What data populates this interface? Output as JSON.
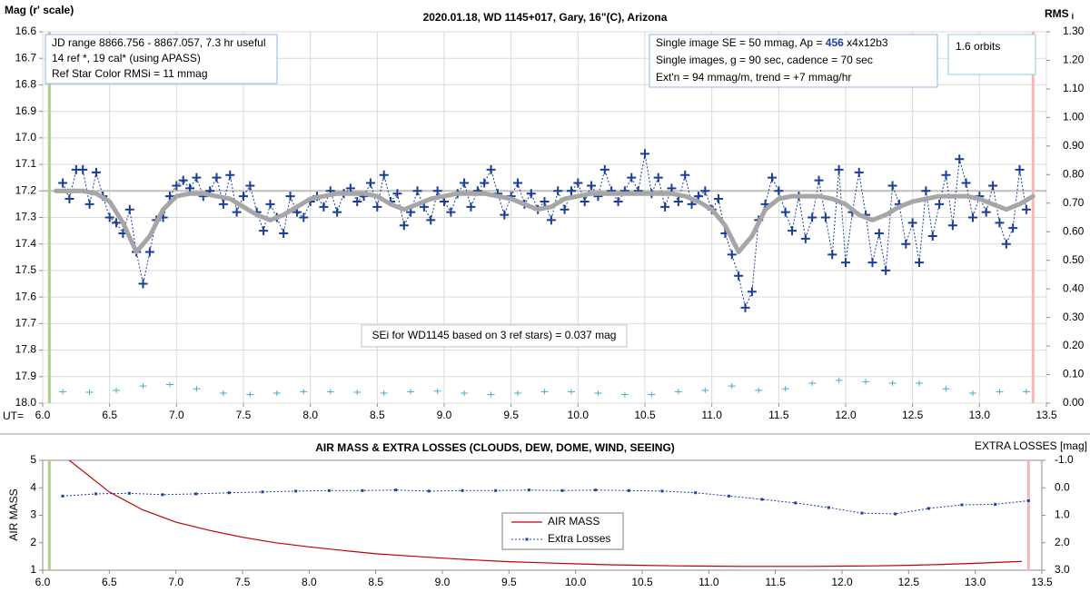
{
  "chart_data": [
    {
      "type": "scatter",
      "title": "2020.01.18, WD 1145+017, Gary, 16\"(C), Arizona",
      "y_label": "Mag (r' scale)",
      "y2_label": "RMS",
      "y2_label_sub": "i",
      "x_label": "UT=",
      "xlim": [
        6.0,
        13.5
      ],
      "xticks": [
        {
          "value": 6,
          "label": "6.0"
        },
        6.5,
        {
          "value": 7,
          "label": "7.0"
        },
        7.5,
        {
          "value": 8,
          "label": "8.0"
        },
        8.5,
        {
          "value": 9,
          "label": "9.0"
        },
        9.5,
        {
          "value": 10,
          "label": "10.0"
        },
        10.5,
        {
          "value": 11,
          "label": "11.0"
        },
        11.5,
        {
          "value": 12,
          "label": "12.0"
        },
        12.5,
        {
          "value": 13,
          "label": "13.0"
        },
        13.5
      ],
      "ylim": [
        16.6,
        18.0
      ],
      "y_inverted": true,
      "yticks": [
        16.6,
        16.7,
        16.8,
        16.9,
        {
          "value": 17,
          "label": "17.0"
        },
        17.1,
        17.2,
        17.3,
        17.4,
        17.5,
        17.6,
        17.7,
        17.8,
        17.9,
        {
          "value": 18,
          "label": "18.0"
        }
      ],
      "y2lim": [
        0,
        1.3
      ],
      "y2ticks": [
        {
          "value": 0,
          "label": "0.00"
        },
        {
          "value": 0.1,
          "label": "0.10"
        },
        {
          "value": 0.2,
          "label": "0.20"
        },
        {
          "value": 0.3,
          "label": "0.30"
        },
        {
          "value": 0.4,
          "label": "0.40"
        },
        {
          "value": 0.5,
          "label": "0.50"
        },
        {
          "value": 0.6,
          "label": "0.60"
        },
        {
          "value": 0.7,
          "label": "0.70"
        },
        {
          "value": 0.8,
          "label": "0.80"
        },
        {
          "value": 0.9,
          "label": "0.90"
        },
        {
          "value": 1,
          "label": "1.00"
        },
        {
          "value": 1.1,
          "label": "1.10"
        },
        {
          "value": 1.2,
          "label": "1.20"
        },
        {
          "value": 1.3,
          "label": "1.30"
        }
      ],
      "grid": true,
      "hlines": [
        {
          "value": 17.2,
          "color": "#bfbfbf"
        }
      ],
      "vlines": [
        {
          "value": 6.05,
          "color": "#a9d18e"
        },
        {
          "value": 13.4,
          "color": "#f4b6b6"
        }
      ],
      "annotations": [
        [
          "JD range 8866.756 - 8867.057, 7.3 hr useful",
          "14 ref *, 19 cal* (using APASS)",
          "Ref Star Color RMSi = 11 mmag"
        ],
        [
          [
            "Single image SE = 50 mmag, Ap = ",
            "456",
            " x4x12b3"
          ],
          "Single images, g = 90 sec, cadence = 70 sec",
          "Ext'n = 94 mmag/m, trend = +7 mmag/hr"
        ],
        [
          "1.6 orbits"
        ],
        [
          "SEi for WD1145 based on 3 ref stars) = 0.037 mag"
        ]
      ],
      "series": [
        {
          "color": "#1a3e96",
          "marker": "cross",
          "line": "dotted",
          "x": [
            6.15,
            6.2,
            6.25,
            6.3,
            6.35,
            6.4,
            6.45,
            6.5,
            6.55,
            6.6,
            6.65,
            6.7,
            6.75,
            6.8,
            6.85,
            6.9,
            6.95,
            7,
            7.05,
            7.1,
            7.15,
            7.2,
            7.25,
            7.3,
            7.35,
            7.4,
            7.45,
            7.5,
            7.55,
            7.6,
            7.65,
            7.7,
            7.75,
            7.8,
            7.85,
            7.9,
            7.95,
            8,
            8.05,
            8.1,
            8.15,
            8.2,
            8.25,
            8.3,
            8.35,
            8.4,
            8.45,
            8.5,
            8.55,
            8.6,
            8.65,
            8.7,
            8.75,
            8.8,
            8.85,
            8.9,
            8.95,
            9,
            9.05,
            9.1,
            9.15,
            9.2,
            9.25,
            9.3,
            9.35,
            9.4,
            9.45,
            9.5,
            9.55,
            9.6,
            9.65,
            9.7,
            9.75,
            9.8,
            9.85,
            9.9,
            9.95,
            10,
            10.05,
            10.1,
            10.15,
            10.2,
            10.25,
            10.3,
            10.35,
            10.4,
            10.45,
            10.5,
            10.55,
            10.6,
            10.65,
            10.7,
            10.75,
            10.8,
            10.85,
            10.9,
            10.95,
            11,
            11.05,
            11.1,
            11.15,
            11.2,
            11.25,
            11.3,
            11.35,
            11.4,
            11.45,
            11.5,
            11.55,
            11.6,
            11.65,
            11.7,
            11.75,
            11.8,
            11.85,
            11.9,
            11.95,
            12,
            12.05,
            12.1,
            12.15,
            12.2,
            12.25,
            12.3,
            12.35,
            12.4,
            12.45,
            12.5,
            12.55,
            12.6,
            12.65,
            12.7,
            12.75,
            12.8,
            12.85,
            12.9,
            12.95,
            13,
            13.05,
            13.1,
            13.15,
            13.2,
            13.25,
            13.3,
            13.35
          ],
          "values": [
            17.17,
            17.23,
            17.12,
            17.12,
            17.25,
            17.13,
            17.22,
            17.3,
            17.32,
            17.36,
            17.27,
            17.43,
            17.55,
            17.43,
            17.31,
            17.3,
            17.22,
            17.18,
            17.16,
            17.19,
            17.15,
            17.22,
            17.2,
            17.15,
            17.25,
            17.14,
            17.28,
            17.22,
            17.18,
            17.28,
            17.35,
            17.25,
            17.3,
            17.36,
            17.22,
            17.28,
            17.3,
            17.24,
            17.22,
            17.26,
            17.2,
            17.28,
            17.21,
            17.19,
            17.24,
            17.22,
            17.17,
            17.26,
            17.14,
            17.24,
            17.21,
            17.33,
            17.28,
            17.2,
            17.26,
            17.31,
            17.2,
            17.24,
            17.28,
            17.21,
            17.17,
            17.26,
            17.2,
            17.17,
            17.12,
            17.21,
            17.29,
            17.22,
            17.17,
            17.25,
            17.21,
            17.27,
            17.24,
            17.31,
            17.2,
            17.27,
            17.2,
            17.17,
            17.24,
            17.18,
            17.22,
            17.12,
            17.2,
            17.24,
            17.2,
            17.15,
            17.2,
            17.06,
            17.21,
            17.15,
            17.26,
            17.19,
            17.24,
            17.14,
            17.25,
            17.22,
            17.2,
            17.27,
            17.23,
            17.36,
            17.44,
            17.52,
            17.64,
            17.58,
            17.31,
            17.25,
            17.15,
            17.2,
            17.28,
            17.35,
            17.22,
            17.38,
            17.3,
            17.16,
            17.3,
            17.44,
            17.12,
            17.47,
            17.28,
            17.13,
            17.29,
            17.47,
            17.36,
            17.5,
            17.18,
            17.25,
            17.4,
            17.32,
            17.47,
            17.2,
            17.37,
            17.25,
            17.14,
            17.33,
            17.08,
            17.17,
            17.3,
            17.22,
            17.28,
            17.18,
            17.32,
            17.4,
            17.34,
            17.12,
            17.27
          ]
        },
        {
          "color": "#a6a6a6",
          "line": "thick",
          "x": [
            6.1,
            6.2,
            6.3,
            6.4,
            6.5,
            6.6,
            6.7,
            6.8,
            6.9,
            7,
            7.1,
            7.2,
            7.3,
            7.4,
            7.5,
            7.6,
            7.7,
            7.8,
            7.9,
            8,
            8.1,
            8.2,
            8.3,
            8.4,
            8.5,
            8.6,
            8.7,
            8.8,
            8.9,
            9,
            9.1,
            9.2,
            9.3,
            9.4,
            9.5,
            9.6,
            9.7,
            9.8,
            9.9,
            10,
            10.1,
            10.2,
            10.3,
            10.4,
            10.5,
            10.6,
            10.7,
            10.8,
            10.9,
            11,
            11.1,
            11.2,
            11.3,
            11.4,
            11.5,
            11.6,
            11.7,
            11.8,
            11.9,
            12,
            12.1,
            12.2,
            12.3,
            12.4,
            12.5,
            12.6,
            12.7,
            12.8,
            12.9,
            13,
            13.1,
            13.2,
            13.3,
            13.4
          ],
          "values": [
            17.2,
            17.2,
            17.2,
            17.21,
            17.24,
            17.32,
            17.43,
            17.37,
            17.27,
            17.22,
            17.21,
            17.21,
            17.22,
            17.23,
            17.26,
            17.29,
            17.31,
            17.29,
            17.26,
            17.23,
            17.22,
            17.21,
            17.21,
            17.21,
            17.22,
            17.25,
            17.27,
            17.25,
            17.23,
            17.22,
            17.21,
            17.21,
            17.21,
            17.22,
            17.23,
            17.25,
            17.27,
            17.26,
            17.23,
            17.22,
            17.21,
            17.21,
            17.21,
            17.21,
            17.21,
            17.21,
            17.21,
            17.22,
            17.24,
            17.27,
            17.33,
            17.43,
            17.37,
            17.27,
            17.23,
            17.22,
            17.22,
            17.22,
            17.23,
            17.25,
            17.29,
            17.31,
            17.29,
            17.26,
            17.24,
            17.23,
            17.22,
            17.22,
            17.22,
            17.23,
            17.25,
            17.27,
            17.25,
            17.22
          ]
        },
        {
          "color": "#4bacc6",
          "marker": "small-cross",
          "axis": "y2",
          "x": [
            6.15,
            6.35,
            6.55,
            6.75,
            6.95,
            7.15,
            7.35,
            7.55,
            7.75,
            7.95,
            8.15,
            8.35,
            8.55,
            8.75,
            8.95,
            9.15,
            9.35,
            9.55,
            9.75,
            9.95,
            10.15,
            10.35,
            10.55,
            10.75,
            10.95,
            11.15,
            11.35,
            11.55,
            11.75,
            11.95,
            12.15,
            12.35,
            12.55,
            12.75,
            12.95,
            13.15,
            13.35
          ],
          "values": [
            0.04,
            0.038,
            0.045,
            0.06,
            0.065,
            0.05,
            0.035,
            0.03,
            0.035,
            0.04,
            0.04,
            0.038,
            0.035,
            0.04,
            0.042,
            0.035,
            0.03,
            0.035,
            0.04,
            0.04,
            0.035,
            0.03,
            0.03,
            0.04,
            0.045,
            0.06,
            0.045,
            0.05,
            0.07,
            0.08,
            0.075,
            0.07,
            0.07,
            0.05,
            0.035,
            0.04,
            0.04
          ]
        }
      ]
    },
    {
      "type": "line",
      "title": "AIR MASS & EXTRA LOSSES (CLOUDS, DEW, DOME, WIND, SEEING)",
      "y_label": "AIR MASS",
      "y2_label": "EXTRA LOSSES [mag]",
      "xlim": [
        6.0,
        13.5
      ],
      "xticks": [
        {
          "value": 6,
          "label": "6.0"
        },
        6.5,
        {
          "value": 7,
          "label": "7.0"
        },
        7.5,
        {
          "value": 8,
          "label": "8.0"
        },
        8.5,
        {
          "value": 9,
          "label": "9.0"
        },
        9.5,
        {
          "value": 10,
          "label": "10.0"
        },
        10.5,
        {
          "value": 11,
          "label": "11.0"
        },
        11.5,
        {
          "value": 12,
          "label": "12.0"
        },
        12.5,
        {
          "value": 13,
          "label": "13.0"
        },
        13.5
      ],
      "ylim": [
        1,
        5
      ],
      "yticks": [
        1,
        2,
        3,
        4,
        5
      ],
      "y2lim": [
        -1,
        3
      ],
      "y2_inverted": true,
      "y2ticks": [
        {
          "value": -1,
          "label": "-1.0"
        },
        {
          "value": 0,
          "label": "0.0"
        },
        {
          "value": 1,
          "label": "1.0"
        },
        {
          "value": 2,
          "label": "2.0"
        },
        {
          "value": 3,
          "label": "3.0"
        }
      ],
      "grid": false,
      "vlines": [
        {
          "value": 6.05,
          "color": "#a9d18e"
        },
        {
          "value": 13.4,
          "color": "#f4b6b6"
        }
      ],
      "series": [
        {
          "name": "AIR MASS",
          "color": "#c00000",
          "line": "solid",
          "x": [
            6.2,
            6.5,
            6.75,
            7,
            7.25,
            7.5,
            7.75,
            8,
            8.25,
            8.5,
            8.75,
            9,
            9.25,
            9.5,
            9.75,
            10,
            10.25,
            10.5,
            10.75,
            11,
            11.25,
            11.5,
            11.75,
            12,
            12.25,
            12.5,
            12.75,
            13,
            13.25,
            13.35
          ],
          "values": [
            5,
            3.85,
            3.2,
            2.75,
            2.45,
            2.2,
            2,
            1.85,
            1.72,
            1.6,
            1.52,
            1.44,
            1.37,
            1.31,
            1.27,
            1.23,
            1.2,
            1.18,
            1.16,
            1.15,
            1.14,
            1.14,
            1.14,
            1.15,
            1.16,
            1.18,
            1.21,
            1.25,
            1.3,
            1.32
          ]
        },
        {
          "name": "Extra Losses",
          "color": "#1f3f9f",
          "line": "dotted",
          "marker": "square",
          "axis": "y2",
          "x": [
            6.15,
            6.4,
            6.65,
            6.9,
            7.15,
            7.4,
            7.65,
            7.9,
            8.15,
            8.4,
            8.65,
            8.9,
            9.15,
            9.4,
            9.65,
            9.9,
            10.15,
            10.4,
            10.65,
            10.9,
            11.15,
            11.4,
            11.65,
            11.9,
            12.15,
            12.4,
            12.65,
            12.9,
            13.15,
            13.4
          ],
          "values": [
            0.3,
            0.22,
            0.2,
            0.25,
            0.22,
            0.18,
            0.15,
            0.12,
            0.1,
            0.1,
            0.08,
            0.12,
            0.1,
            0.1,
            0.08,
            0.1,
            0.08,
            0.1,
            0.12,
            0.18,
            0.3,
            0.42,
            0.55,
            0.72,
            0.92,
            0.95,
            0.75,
            0.62,
            0.6,
            0.47
          ]
        }
      ]
    }
  ]
}
